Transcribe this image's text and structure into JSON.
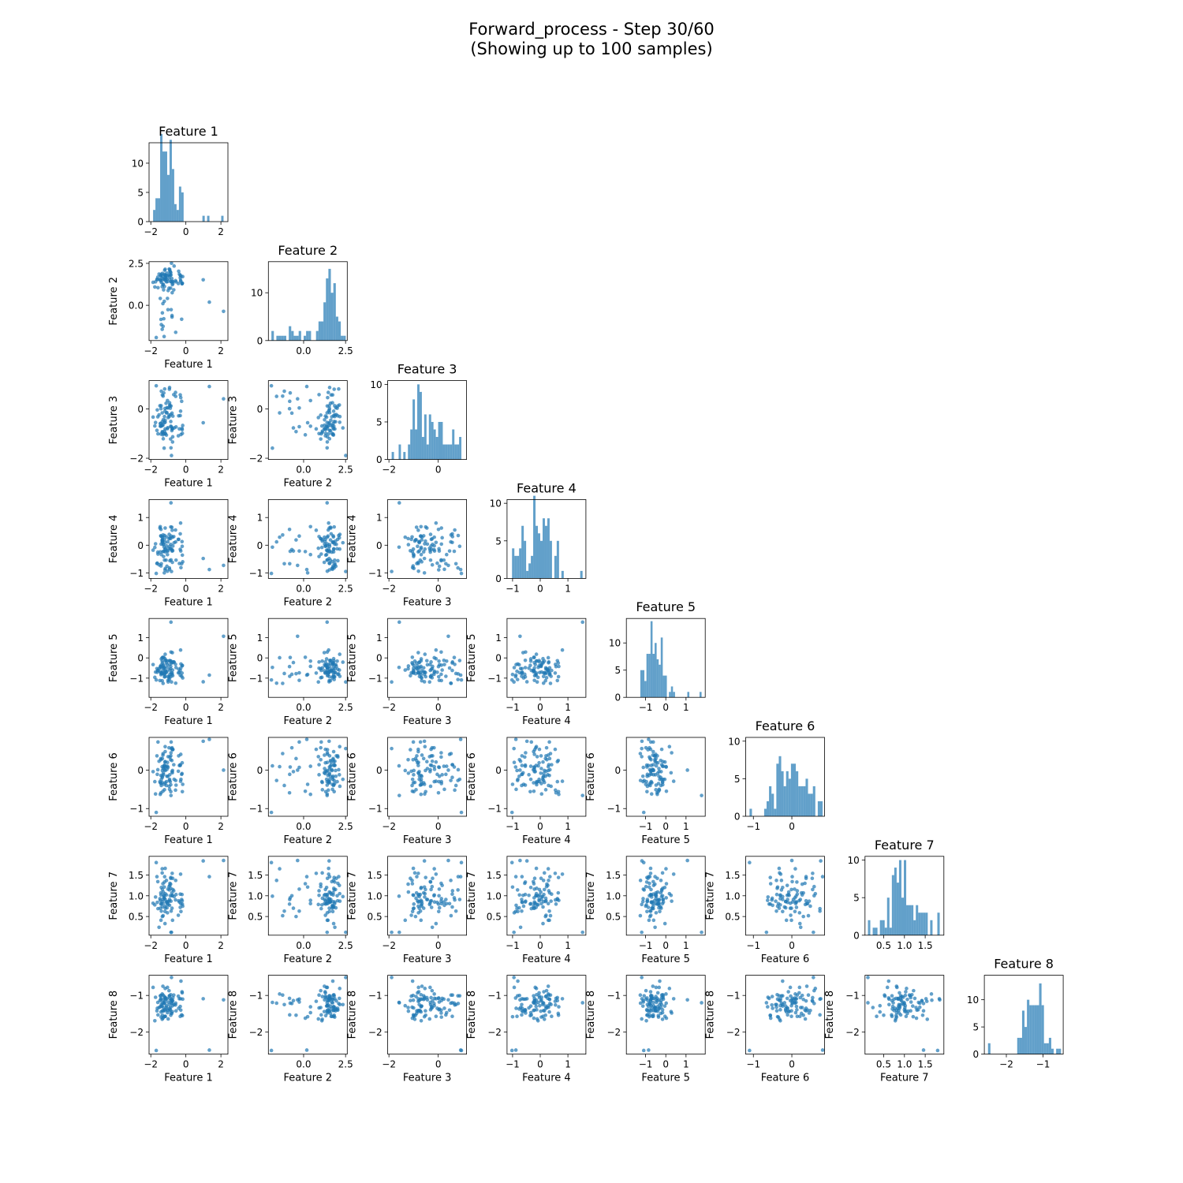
{
  "figure": {
    "title_line1": "Forward_process - Step 30/60",
    "title_line2": "(Showing up to 100 samples)"
  },
  "style": {
    "point_color": "#1f77b4",
    "bar_color": "#1f77b4",
    "alpha": 0.7
  },
  "chart_data": {
    "type": "scatter-matrix",
    "features": [
      "Feature 1",
      "Feature 2",
      "Feature 3",
      "Feature 4",
      "Feature 5",
      "Feature 6",
      "Feature 7",
      "Feature 8"
    ],
    "histogram_bins": 30,
    "axes": [
      {
        "lim": [
          -2.1,
          2.4
        ],
        "ticks": [
          {
            "v": -2,
            "label": "−2"
          },
          {
            "v": 0,
            "label": "0"
          },
          {
            "v": 2,
            "label": "2"
          }
        ]
      },
      {
        "lim": [
          -2.1,
          2.6
        ],
        "ticks": [
          {
            "v": 0,
            "label": "0.0"
          },
          {
            "v": 2.5,
            "label": "2.5"
          }
        ]
      },
      {
        "lim": [
          -2.05,
          1.15
        ],
        "ticks": [
          {
            "v": -2,
            "label": "−2"
          },
          {
            "v": 0,
            "label": "0"
          }
        ]
      },
      {
        "lim": [
          -1.2,
          1.65
        ],
        "ticks": [
          {
            "v": -1,
            "label": "−1"
          },
          {
            "v": 0,
            "label": "0"
          },
          {
            "v": 1,
            "label": "1"
          }
        ]
      },
      {
        "lim": [
          -1.95,
          1.95
        ],
        "ticks": [
          {
            "v": -1,
            "label": "−1"
          },
          {
            "v": 0,
            "label": "0"
          },
          {
            "v": 1,
            "label": "1"
          }
        ]
      },
      {
        "lim": [
          -1.2,
          0.85
        ],
        "ticks": [
          {
            "v": -1,
            "label": "−1"
          },
          {
            "v": 0,
            "label": "0"
          }
        ]
      },
      {
        "lim": [
          0.05,
          1.95
        ],
        "ticks": [
          {
            "v": 0.5,
            "label": "0.5"
          },
          {
            "v": 1.0,
            "label": "1.0"
          },
          {
            "v": 1.5,
            "label": "1.5"
          }
        ]
      },
      {
        "lim": [
          -2.6,
          -0.45
        ],
        "ticks": [
          {
            "v": -2,
            "label": "−2"
          },
          {
            "v": -1,
            "label": "−1"
          }
        ]
      }
    ],
    "hist_y": [
      {
        "max": 13.5,
        "ticks": [
          0,
          5,
          10
        ]
      },
      {
        "max": 16.5,
        "ticks": [
          0,
          10
        ]
      },
      {
        "max": 10.5,
        "ticks": [
          0,
          5,
          10
        ]
      },
      {
        "max": 10.5,
        "ticks": [
          0,
          5,
          10
        ]
      },
      {
        "max": 14.5,
        "ticks": [
          0,
          5,
          10
        ]
      },
      {
        "max": 10.5,
        "ticks": [
          0,
          5,
          10
        ]
      },
      {
        "max": 10.5,
        "ticks": [
          0,
          5,
          10
        ]
      },
      {
        "max": 14.5,
        "ticks": [
          0,
          5,
          10
        ]
      }
    ],
    "samples": [
      [
        -1.11,
        1.78,
        -1.06,
        0.3,
        -0.24,
        -0.4,
        1.37,
        -1.32
      ],
      [
        -1.05,
        1.41,
        -0.8,
        -0.94,
        -0.48,
        0.2,
        0.59,
        -0.78
      ],
      [
        -0.32,
        1.64,
        0.57,
        0.41,
        -0.62,
        0.14,
        1.04,
        -1.57
      ],
      [
        -0.76,
        1.41,
        -1.34,
        0.29,
        -0.6,
        -0.01,
        0.41,
        -1.28
      ],
      [
        -1.4,
        -1.15,
        0.72,
        -0.67,
        -0.77,
        -0.4,
        0.63,
        -1.25
      ],
      [
        -1.42,
        1.76,
        -1.02,
        -0.75,
        -0.73,
        0.27,
        1.02,
        -1.0
      ],
      [
        -1.21,
        2.09,
        0.81,
        0.35,
        -0.79,
        0.01,
        1.46,
        -1.22
      ],
      [
        -0.94,
        1.82,
        0.8,
        -0.82,
        -1.07,
        -0.27,
        1.14,
        -1.01
      ],
      [
        0.99,
        1.52,
        -0.56,
        -0.48,
        -1.18,
        0.75,
        1.84,
        -1.09
      ],
      [
        -0.59,
        1.47,
        0.67,
        0.55,
        -0.32,
        -0.52,
        0.9,
        -1.26
      ],
      [
        -0.8,
        1.6,
        -0.88,
        0.65,
        -0.25,
        0.25,
        1.07,
        -1.49
      ],
      [
        -1.02,
        -0.26,
        0.04,
        -0.21,
        -1.11,
        0.07,
        1.16,
        -1.18
      ],
      [
        -0.24,
        -0.83,
        0.31,
        -0.67,
        -0.91,
        -0.11,
        0.91,
        -1.53
      ],
      [
        -1.05,
        0.41,
        0.34,
        -0.34,
        -0.16,
        0.1,
        0.81,
        -1.47
      ],
      [
        -1.59,
        1.05,
        -1.01,
        -0.32,
        -0.62,
        0.73,
        0.69,
        -1.53
      ],
      [
        -1.27,
        0.92,
        -1.0,
        -0.41,
        -0.51,
        -0.12,
        1.01,
        -1.34
      ],
      [
        -0.28,
        1.74,
        -1.04,
        -0.81,
        -0.3,
        -0.24,
        0.62,
        -0.61
      ],
      [
        -1.23,
        0.24,
        -0.56,
        -1.0,
        -0.82,
        -0.37,
        1.21,
        -1.58
      ],
      [
        -1.34,
        1.73,
        0.57,
        0.1,
        -0.25,
        -0.19,
        0.73,
        -1.2
      ],
      [
        -1.3,
        -1.25,
        0.52,
        0.37,
        -1.26,
        0.43,
        0.52,
        -0.99
      ],
      [
        -0.85,
        1.41,
        0.12,
        -0.53,
        0.29,
        0.45,
        0.87,
        -1.48
      ],
      [
        -0.56,
        1.4,
        -0.73,
        -0.54,
        -0.48,
        -0.39,
        1.03,
        -1.42
      ],
      [
        -1.31,
        1.24,
        -0.66,
        0.29,
        -0.64,
        0.39,
        0.81,
        -0.75
      ],
      [
        -0.69,
        0.92,
        0.58,
        0.31,
        -0.2,
        0.14,
        1.12,
        -0.99
      ],
      [
        -0.77,
        1.23,
        -0.81,
        -0.62,
        0.26,
        -0.07,
        1.01,
        -1.44
      ],
      [
        -1.18,
        1.62,
        -0.46,
        0.62,
        -0.14,
        0.22,
        0.91,
        -1.06
      ],
      [
        -1.08,
        1.55,
        -0.15,
        -0.21,
        -0.66,
        0.02,
        0.85,
        -1.08
      ],
      [
        -0.91,
        2.04,
        0.12,
        -0.56,
        -0.81,
        0.34,
        1.3,
        -1.4
      ],
      [
        -0.18,
        1.71,
        -0.67,
        -0.6,
        -0.99,
        -0.37,
        0.75,
        -1.1
      ],
      [
        -0.93,
        1.55,
        0.87,
        -0.04,
        -0.13,
        -0.24,
        0.91,
        -1.01
      ],
      [
        -0.86,
        1.8,
        -0.7,
        -0.13,
        -0.15,
        -0.38,
        1.18,
        -0.98
      ],
      [
        -1.42,
        -0.84,
        0.01,
        0.57,
        -0.43,
        -0.59,
        0.8,
        -1.08
      ],
      [
        -0.86,
        1.95,
        -0.23,
        0.03,
        -0.42,
        0.37,
        1.42,
        -1.15
      ],
      [
        -1.42,
        1.45,
        -0.7,
        0.33,
        -0.83,
        -0.14,
        0.41,
        -1.45
      ],
      [
        -1.87,
        1.37,
        -0.33,
        -0.18,
        -0.33,
        -0.04,
        0.82,
        -0.78
      ],
      [
        -0.95,
        2.16,
        -0.31,
        0.39,
        -0.91,
        -0.42,
        0.87,
        -1.25
      ],
      [
        -1.22,
        1.12,
        -0.9,
        0.2,
        -0.49,
        -0.51,
        0.94,
        -1.03
      ],
      [
        -1.13,
        1.6,
        0.23,
        -0.54,
        -0.12,
        0.1,
        0.85,
        -1.1
      ],
      [
        -1.6,
        1.68,
        -0.32,
        -0.25,
        -0.62,
        0.01,
        1.34,
        -1.19
      ],
      [
        -0.21,
        1.3,
        -0.84,
        -0.04,
        -0.39,
        0.19,
        0.88,
        -0.93
      ],
      [
        -1.34,
        1.9,
        -0.52,
        0.15,
        -0.73,
        -0.01,
        1.15,
        -1.42
      ],
      [
        -0.41,
        2.03,
        -0.28,
        0.21,
        -0.56,
        0.37,
        0.88,
        -1.35
      ],
      [
        -1.19,
        1.54,
        0.02,
        -0.89,
        -0.93,
        0.08,
        0.62,
        -1.07
      ],
      [
        -1.29,
        1.54,
        -1.21,
        0.02,
        -0.4,
        -0.08,
        1.09,
        -1.43
      ],
      [
        -0.37,
        1.86,
        -0.81,
        -0.66,
        -0.72,
        0.12,
        0.85,
        -1.09
      ],
      [
        -0.3,
        1.49,
        -0.09,
        0.8,
        0.39,
        -0.29,
        1.52,
        -1.09
      ],
      [
        -0.75,
        1.42,
        -1.13,
        -0.2,
        -0.88,
        0.53,
        1.42,
        -1.14
      ],
      [
        -0.79,
        -0.7,
        -0.17,
        -0.16,
        -0.81,
        0.58,
        1.0,
        -1.22
      ],
      [
        -1.26,
        -0.8,
        0.65,
        -0.22,
        0.02,
        0.08,
        0.95,
        -1.21
      ],
      [
        -1.19,
        1.79,
        -0.09,
        0.1,
        -0.04,
        0.21,
        0.33,
        -1.57
      ],
      [
        -0.93,
        1.72,
        0.25,
        -0.87,
        -0.33,
        -0.5,
        0.77,
        -1.35
      ],
      [
        -0.87,
        1.02,
        -1.22,
        0.24,
        -0.54,
        0.27,
        1.28,
        -1.33
      ],
      [
        -1.03,
        1.75,
        -0.76,
        0.12,
        -0.92,
        -0.16,
        0.86,
        -1.41
      ],
      [
        -1.35,
        1.6,
        -0.67,
        0.19,
        -1.13,
        -0.16,
        0.86,
        -1.29
      ],
      [
        -1.35,
        -1.43,
        -0.16,
        0.29,
        0.01,
        0.09,
        1.65,
        -0.96
      ],
      [
        -1.11,
        1.4,
        -0.16,
        -0.02,
        -0.72,
        -0.3,
        1.02,
        -1.28
      ],
      [
        -1.53,
        1.86,
        -0.24,
        -0.71,
        -0.53,
        0.23,
        0.24,
        -1.33
      ],
      [
        -0.84,
        -0.26,
        -0.72,
        0.33,
        -0.74,
        0.73,
        0.63,
        -1.1
      ],
      [
        -0.74,
        1.3,
        -0.29,
        -0.03,
        -0.2,
        0.54,
        1.15,
        -1.06
      ],
      [
        -1.63,
        1.53,
        -0.04,
        -0.65,
        -0.71,
        -0.11,
        0.84,
        -1.35
      ],
      [
        -1.46,
        0.41,
        -0.7,
        0.67,
        -0.42,
        -0.63,
        0.89,
        -1.31
      ],
      [
        -1.17,
        1.69,
        -0.99,
        -0.84,
        -0.66,
        -0.01,
        0.7,
        -1.57
      ],
      [
        -0.79,
        -0.61,
        -0.77,
        -0.21,
        -0.23,
        -0.04,
        0.7,
        -1.14
      ],
      [
        -0.2,
        1.32,
        -0.99,
        -0.36,
        -0.37,
        -0.56,
        0.8,
        -1.55
      ],
      [
        -0.58,
        -1.61,
        0.51,
        0.12,
        -1.25,
        -0.27,
        1.37,
        -1.21
      ],
      [
        -0.96,
        1.02,
        -0.25,
        0.23,
        -0.98,
        0.58,
        1.22,
        -0.87
      ],
      [
        -1.31,
        0.1,
        -1.05,
        -0.23,
        0.03,
        -0.55,
        1.29,
        -1.62
      ],
      [
        -0.29,
        1.43,
        0.46,
        -0.21,
        -0.5,
        0.41,
        0.81,
        -1.4
      ],
      [
        -1.35,
        1.11,
        -0.95,
        0.15,
        -0.16,
        -0.32,
        1.55,
        -1.65
      ],
      [
        -0.78,
        0.75,
        -0.81,
        0.54,
        -0.75,
        0.54,
        1.54,
        -1.16
      ],
      [
        -1.4,
        1.37,
        -0.69,
        -0.34,
        -0.05,
        -0.24,
        1.2,
        -1.29
      ],
      [
        -1.46,
        1.53,
        -0.59,
        -0.24,
        -0.69,
        -0.33,
        0.7,
        -1.01
      ],
      [
        -0.32,
        1.79,
        -0.27,
        -0.15,
        -0.86,
        0.12,
        0.72,
        -1.3
      ],
      [
        -0.86,
        1.82,
        -0.51,
        0.66,
        -0.93,
        -0.56,
        1.44,
        -1.54
      ],
      [
        -1.18,
        1.79,
        -0.81,
        -0.24,
        -0.62,
        0.48,
        0.75,
        -1.41
      ],
      [
        -1.29,
        1.25,
        -0.44,
        0.04,
        -0.34,
        0.04,
        0.91,
        -1.12
      ],
      [
        -1.48,
        1.53,
        0.13,
        0.62,
        -1.12,
        -0.3,
        0.93,
        -1.14
      ],
      [
        -0.43,
        1.3,
        -1.09,
        0.21,
        -0.74,
        -0.03,
        0.53,
        -1.02
      ],
      [
        -1.73,
        1.4,
        -0.55,
        0.05,
        -0.7,
        -0.62,
        0.97,
        -1.05
      ],
      [
        -1.34,
        -0.45,
        -0.92,
        0.19,
        -0.78,
        0.3,
        0.5,
        -1.54
      ],
      [
        -1.24,
        -1.86,
        -1.59,
        -0.07,
        -0.47,
        0.11,
        0.99,
        -1.19
      ],
      [
        -1.08,
        1.92,
        0.05,
        -0.76,
        -0.34,
        -0.16,
        0.71,
        -1.37
      ],
      [
        -1.77,
        1.09,
        -0.69,
        -0.08,
        -0.96,
        -0.3,
        0.78,
        -1.69
      ],
      [
        -0.92,
        2.13,
        0.16,
        0.27,
        -0.6,
        -0.12,
        1.25,
        -1.08
      ],
      [
        -0.67,
        2.34,
        -0.77,
        0.09,
        -0.21,
        -0.24,
        0.98,
        -1.25
      ],
      [
        -1.18,
        1.49,
        -1.01,
        -0.14,
        -0.75,
        -0.33,
        1.66,
        -1.13
      ],
      [
        -1.22,
        1.85,
        -0.31,
        -0.54,
        -0.94,
        0.13,
        1.33,
        -1.39
      ],
      [
        -1.01,
        0.88,
        -0.35,
        -0.11,
        -1.19,
        0.35,
        0.79,
        -1.64
      ],
      [
        -1.18,
        2.15,
        -0.54,
        -0.14,
        0.18,
        0.61,
        1.05,
        -0.81
      ],
      [
        -0.22,
        1.28,
        -0.79,
        0.13,
        -0.75,
        -0.09,
        1.03,
        -0.9
      ],
      [
        -1.41,
        1.85,
        0.13,
        0.04,
        -0.36,
        -0.35,
        0.81,
        -1.59
      ],
      [
        -0.89,
        2.0,
        0.03,
        -0.13,
        -0.16,
        -0.3,
        1.0,
        -1.39
      ],
      [
        -1.43,
        1.76,
        -0.59,
        0.34,
        -0.49,
        0.3,
        1.07,
        -1.11
      ],
      [
        -1.65,
        1.55,
        -0.87,
        -0.66,
        -0.53,
        0.37,
        1.46,
        -1.42
      ],
      [
        2.15,
        -0.36,
        0.41,
        -0.73,
        1.07,
        0.0,
        1.85,
        -1.12
      ],
      [
        -0.85,
        1.4,
        -1.58,
        1.53,
        1.77,
        -0.66,
        0.12,
        -1.2
      ],
      [
        -0.82,
        2.51,
        -1.89,
        -0.95,
        -1.19,
        0.56,
        0.12,
        -0.51
      ],
      [
        -1.69,
        -1.92,
        0.94,
        -1.02,
        -1.09,
        -1.1,
        1.8,
        -2.5
      ],
      [
        1.34,
        0.19,
        0.91,
        -0.88,
        -0.85,
        0.8,
        1.46,
        -2.49
      ]
    ]
  }
}
